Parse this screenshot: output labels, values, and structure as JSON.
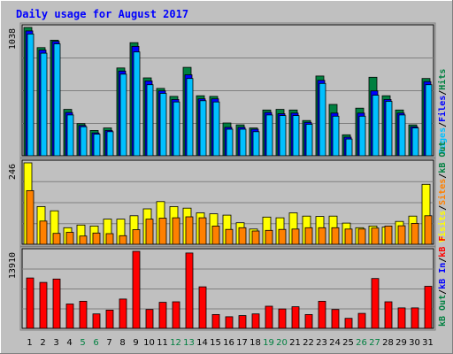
{
  "chart_data": {
    "type": "bar",
    "title": "Daily usage for August 2017",
    "colors": {
      "background": "#c0c0c0",
      "panel": "#c0c0c0",
      "title": "#0000ff",
      "hits": "#008040",
      "files": "#0080ff",
      "pages": "#00c0ff",
      "visits": "#ffff00",
      "sites": "#ff8000",
      "kb_f": "#ff0000",
      "kb_in": "#0000ff",
      "kb_out": "#008040",
      "weekend_day": "#008040",
      "weekday": "#000000"
    },
    "days": [
      "1",
      "2",
      "3",
      "4",
      "5",
      "6",
      "7",
      "8",
      "9",
      "10",
      "11",
      "12",
      "13",
      "14",
      "15",
      "16",
      "17",
      "18",
      "19",
      "20",
      "21",
      "22",
      "23",
      "24",
      "25",
      "26",
      "27",
      "28",
      "29",
      "30",
      "31"
    ],
    "weekend_days": [
      5,
      6,
      12,
      13,
      19,
      20,
      26,
      27
    ],
    "panels": [
      {
        "id": "hits-files-pages",
        "max_label": "1038",
        "max": 1038,
        "legend": [
          {
            "text": "Pages",
            "color": "#00c0ff"
          },
          {
            "text": "/",
            "color": "#000000"
          },
          {
            "text": "Files",
            "color": "#0000ff"
          },
          {
            "text": "/",
            "color": "#000000"
          },
          {
            "text": "Hits",
            "color": "#008040"
          }
        ],
        "series": [
          {
            "name": "Hits",
            "color": "#008040",
            "values": [
              1038,
              875,
              935,
              375,
              260,
              205,
              225,
              710,
              915,
              630,
              545,
              480,
              715,
              485,
              480,
              265,
              250,
              225,
              370,
              375,
              370,
              285,
              645,
              415,
              170,
              385,
              635,
              485,
              370,
              250,
              625
            ]
          },
          {
            "name": "Files",
            "color": "#0000ff",
            "values": [
              1010,
              855,
              925,
              350,
              245,
              185,
              205,
              685,
              885,
              605,
              525,
              455,
              655,
              460,
              460,
              230,
              230,
              215,
              350,
              340,
              345,
              270,
              610,
              345,
              150,
              345,
              525,
              455,
              345,
              235,
              600
            ]
          },
          {
            "name": "Pages",
            "color": "#00c0ff",
            "values": [
              985,
              830,
              905,
              330,
              235,
              175,
              195,
              660,
              840,
              575,
              505,
              435,
              625,
              445,
              435,
              215,
              215,
              195,
              330,
              325,
              325,
              255,
              585,
              320,
              135,
              320,
              490,
              440,
              330,
              225,
              575
            ]
          }
        ]
      },
      {
        "id": "visits-sites",
        "max_label": "246",
        "max": 246,
        "legend": [
          {
            "text": "Visits",
            "color": "#ffff00"
          },
          {
            "text": "/",
            "color": "#000000"
          },
          {
            "text": "Sites",
            "color": "#ff8000"
          },
          {
            "text": "/",
            "color": "#000000"
          },
          {
            "text": "kB Out",
            "color": "#008040"
          }
        ],
        "series": [
          {
            "name": "Visits",
            "color": "#ffff00",
            "values": [
              246,
              114,
              101,
              50,
              58,
              55,
              76,
              76,
              86,
              107,
              129,
              114,
              109,
              95,
              92,
              88,
              65,
              46,
              82,
              80,
              95,
              85,
              84,
              85,
              64,
              50,
              55,
              52,
              69,
              85,
              181
            ]
          },
          {
            "name": "Sites",
            "color": "#ff8000",
            "values": [
              162,
              70,
              33,
              36,
              25,
              34,
              32,
              26,
              44,
              76,
              79,
              80,
              83,
              80,
              55,
              45,
              50,
              40,
              42,
              45,
              46,
              50,
              50,
              50,
              46,
              46,
              49,
              55,
              56,
              63,
              86
            ]
          }
        ]
      },
      {
        "id": "kbytes",
        "max_label": "13910",
        "max": 13910,
        "legend": [
          {
            "text": "kB Out",
            "color": "#008040"
          },
          {
            "text": "/",
            "color": "#000000"
          },
          {
            "text": "kB In",
            "color": "#0000ff"
          },
          {
            "text": "/",
            "color": "#000000"
          },
          {
            "text": "kB F",
            "color": "#ff0000"
          }
        ],
        "series": [
          {
            "name": "kB F",
            "color": "#ff0000",
            "values": [
              9100,
              8300,
              8900,
              4400,
              4900,
              2600,
              3300,
              5300,
              13910,
              3400,
              4700,
              4800,
              13600,
              7500,
              2500,
              2100,
              2300,
              2600,
              4000,
              3500,
              3900,
              2500,
              4900,
              3400,
              1800,
              2700,
              9000,
              4800,
              3700,
              3700,
              7600
            ]
          }
        ]
      }
    ]
  }
}
